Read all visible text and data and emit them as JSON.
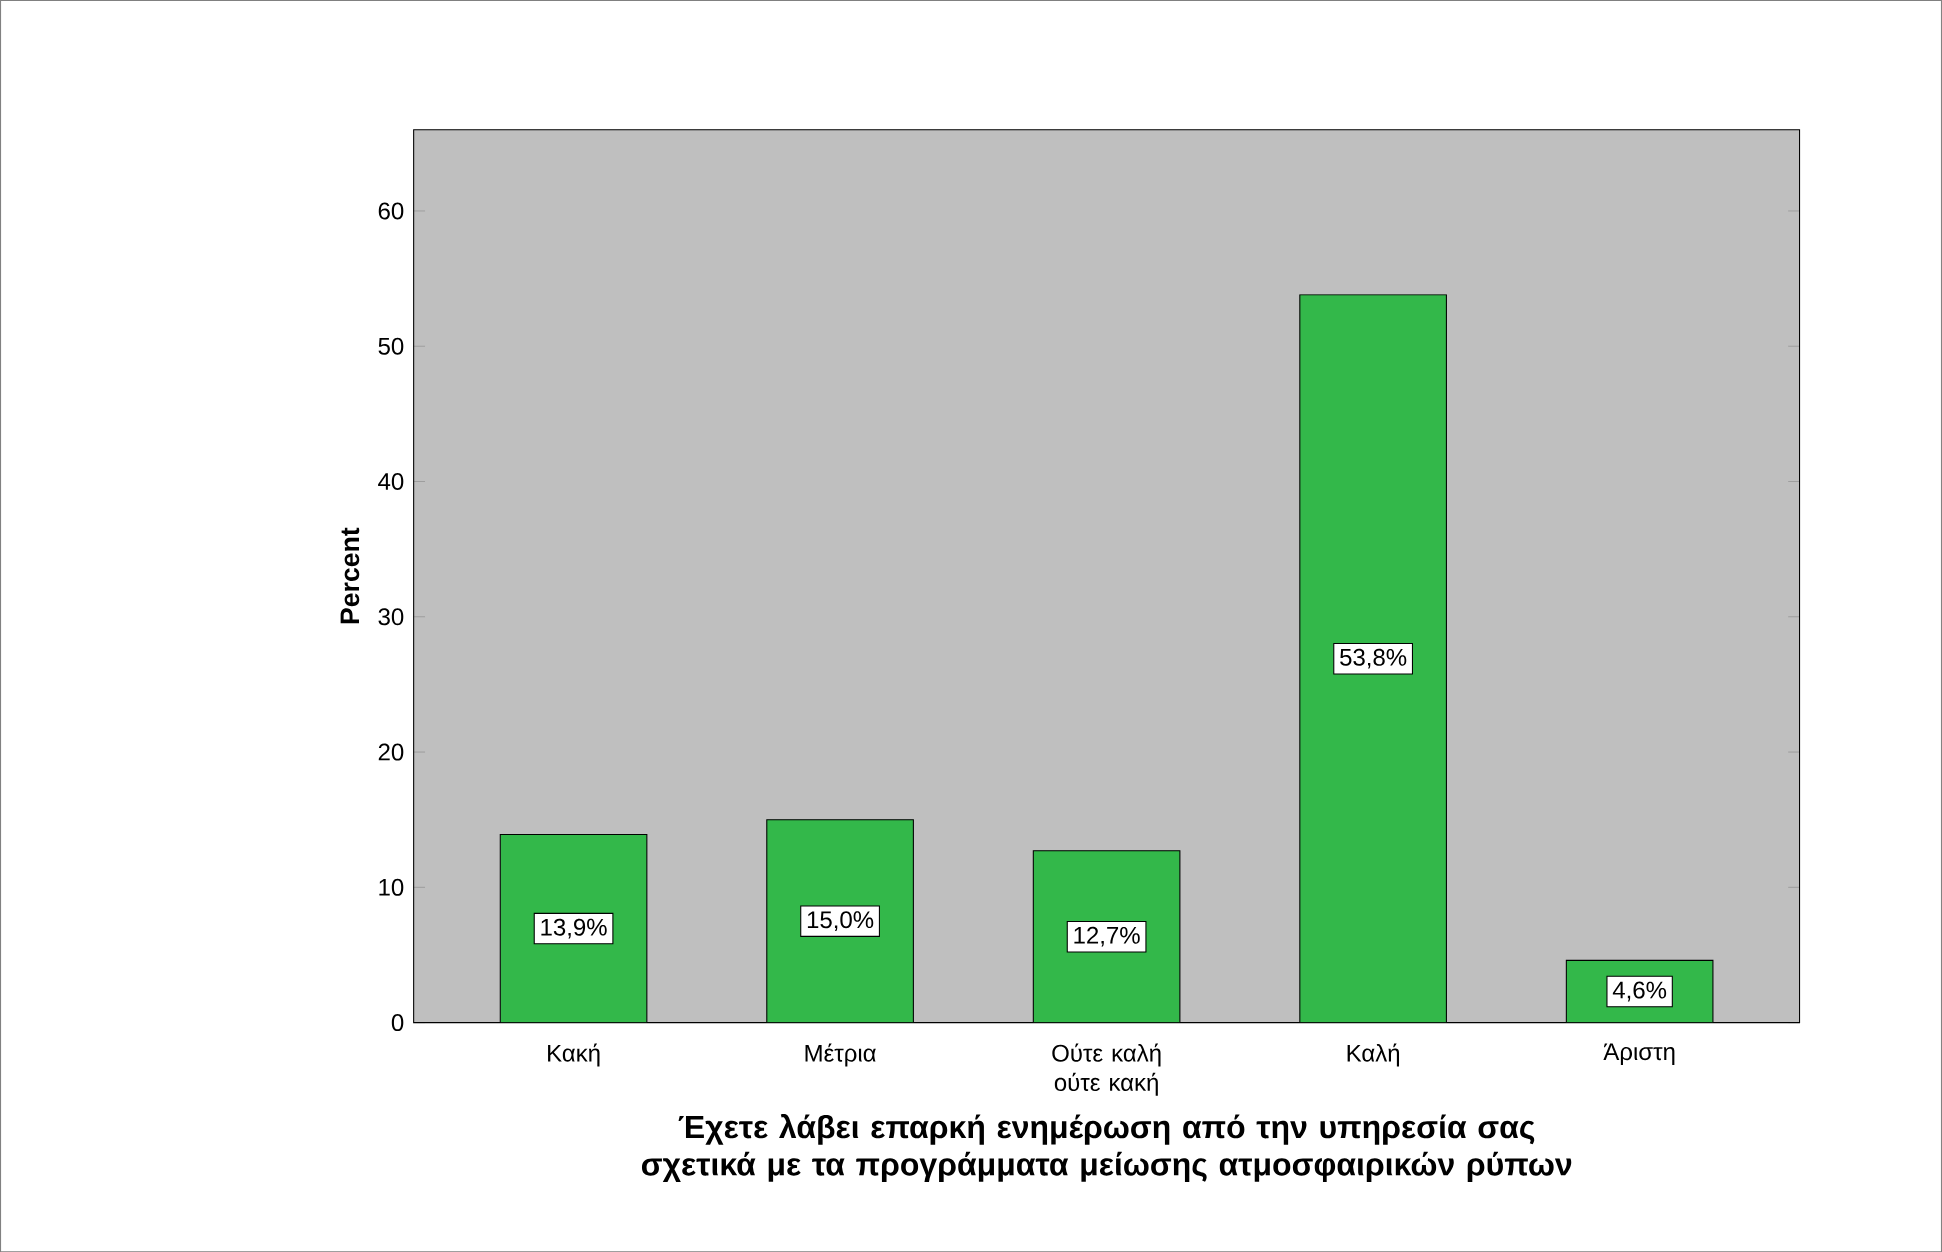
{
  "chart_data": {
    "type": "bar",
    "ylabel": "Percent",
    "xlabel": "Έχετε λάβει επαρκή ενημέρωση από την υπηρεσία σας σχετικά με τα προγράμματα μείωσης ατμοσφαιρικών ρύπων",
    "categories": [
      "Κακή",
      "Μέτρια",
      "Ούτε καλή ούτε κακή",
      "Καλή",
      "Άριστη"
    ],
    "values": [
      13.9,
      15.0,
      12.7,
      53.8,
      4.6
    ],
    "value_labels": [
      "13,9%",
      "15,0%",
      "12,7%",
      "53,8%",
      "4,6%"
    ],
    "color": "#33b84a",
    "ylim": [
      0,
      66
    ],
    "yticks": [
      0,
      10,
      20,
      30,
      40,
      50,
      60
    ],
    "grid": false
  }
}
